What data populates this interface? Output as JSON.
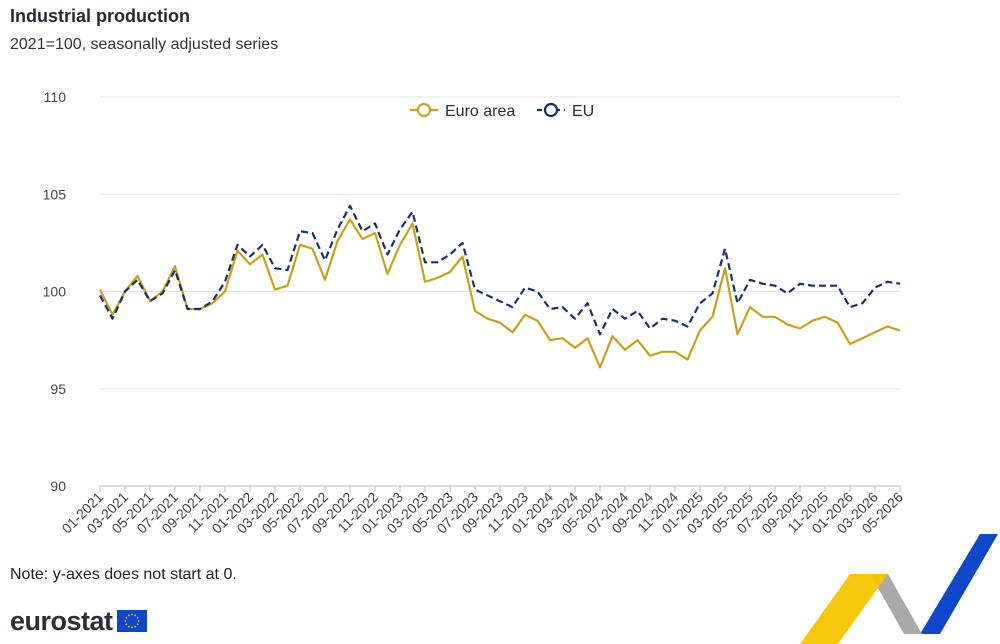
{
  "title": "Industrial production",
  "subtitle": "2021=100, seasonally adjusted series",
  "note": "Note: y-axes does not start at 0.",
  "logo": {
    "text": "eurostat"
  },
  "colors": {
    "euro_area": "#c8a216",
    "eu": "#17306e",
    "grid": "#e3e3e3",
    "accent_yellow": "#f6c500",
    "accent_blue": "#0e47cb",
    "accent_grey": "#a9a9a9"
  },
  "chart_data": {
    "type": "line",
    "ylim": [
      90,
      110
    ],
    "y_ticks": [
      90,
      95,
      100,
      105,
      110
    ],
    "grid": true,
    "legend": "top-center",
    "x": [
      "01-2021",
      "02-2021",
      "03-2021",
      "04-2021",
      "05-2021",
      "06-2021",
      "07-2021",
      "08-2021",
      "09-2021",
      "10-2021",
      "11-2021",
      "12-2021",
      "01-2022",
      "02-2022",
      "03-2022",
      "04-2022",
      "05-2022",
      "06-2022",
      "07-2022",
      "08-2022",
      "09-2022",
      "10-2022",
      "11-2022",
      "12-2022",
      "01-2023",
      "02-2023",
      "03-2023",
      "04-2023",
      "05-2023",
      "06-2023",
      "07-2023",
      "08-2023",
      "09-2023",
      "10-2023",
      "11-2023",
      "12-2023",
      "01-2024",
      "02-2024",
      "03-2024",
      "04-2024",
      "05-2024",
      "06-2024",
      "07-2024",
      "08-2024",
      "09-2024",
      "10-2024",
      "11-2024",
      "12-2024",
      "01-2025",
      "02-2025",
      "03-2025",
      "04-2025",
      "05-2025",
      "06-2025",
      "07-2025",
      "08-2025",
      "09-2025",
      "10-2025",
      "11-2025",
      "12-2025",
      "01-2026",
      "02-2026",
      "03-2026",
      "04-2026",
      "05-2026"
    ],
    "x_tick_labels": [
      "01-2021",
      "03-2021",
      "05-2021",
      "07-2021",
      "09-2021",
      "11-2021",
      "01-2022",
      "03-2022",
      "05-2022",
      "07-2022",
      "09-2022",
      "11-2022",
      "01-2023",
      "03-2023",
      "05-2023",
      "07-2023",
      "09-2023",
      "11-2023",
      "01-2024",
      "03-2024",
      "05-2024",
      "07-2024",
      "09-2024",
      "11-2024",
      "01-2025",
      "03-2025",
      "05-2025",
      "07-2025",
      "09-2025",
      "11-2025",
      "01-2026",
      "03-2026",
      "05-2026"
    ],
    "series": [
      {
        "name": "Euro area",
        "style": "solid",
        "values": [
          100.1,
          98.8,
          100.0,
          100.8,
          99.5,
          100.0,
          101.3,
          99.1,
          99.1,
          99.4,
          100.0,
          102.1,
          101.4,
          101.9,
          100.1,
          100.3,
          102.4,
          102.2,
          100.6,
          102.6,
          103.7,
          102.7,
          103.0,
          100.9,
          102.4,
          103.5,
          100.5,
          100.7,
          101.0,
          101.8,
          99.0,
          98.6,
          98.4,
          97.9,
          98.8,
          98.5,
          97.5,
          97.6,
          97.1,
          97.6,
          96.1,
          97.7,
          97.0,
          97.5,
          96.7,
          96.9,
          96.9,
          96.5,
          98.0,
          98.7,
          101.2,
          97.8,
          99.2,
          98.7,
          98.7,
          98.3,
          98.1,
          98.5,
          98.7,
          98.4,
          97.3,
          97.6,
          97.9,
          98.2,
          98.0
        ]
      },
      {
        "name": "EU",
        "style": "dashed",
        "values": [
          99.8,
          98.6,
          100.0,
          100.6,
          99.5,
          99.9,
          101.1,
          99.1,
          99.1,
          99.5,
          100.5,
          102.4,
          101.8,
          102.4,
          101.2,
          101.1,
          103.1,
          103.0,
          101.6,
          103.2,
          104.4,
          103.1,
          103.5,
          101.9,
          103.2,
          104.1,
          101.5,
          101.5,
          101.9,
          102.5,
          100.1,
          99.8,
          99.5,
          99.2,
          100.2,
          100.0,
          99.1,
          99.2,
          98.6,
          99.4,
          97.8,
          99.1,
          98.6,
          99.0,
          98.1,
          98.6,
          98.5,
          98.2,
          99.4,
          99.9,
          102.2,
          99.4,
          100.6,
          100.4,
          100.3,
          99.9,
          100.4,
          100.3,
          100.3,
          100.3,
          99.2,
          99.4,
          100.2,
          100.5,
          100.4
        ]
      }
    ]
  }
}
